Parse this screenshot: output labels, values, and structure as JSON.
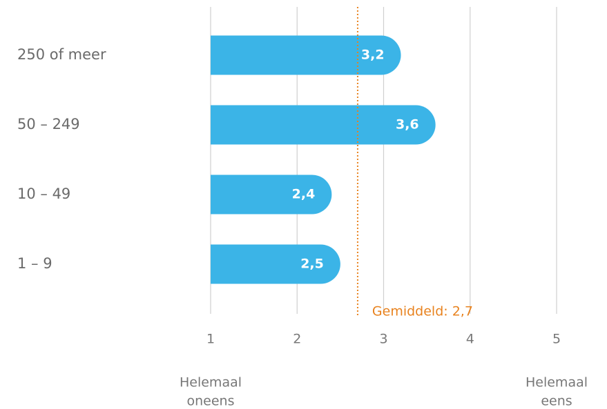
{
  "chart_data": {
    "type": "barh",
    "categories": [
      "250 of meer",
      "50 – 249",
      "10 – 49",
      "1 – 9"
    ],
    "values": [
      3.2,
      3.6,
      2.4,
      2.5
    ],
    "value_labels": [
      "3,2",
      "3,6",
      "2,4",
      "2,5"
    ],
    "color": "#3bb4e7",
    "xlim": [
      1,
      5
    ],
    "xticks": [
      1,
      2,
      3,
      4,
      5
    ],
    "grid": true,
    "average": {
      "value": 2.7,
      "label": "Gemiddeld: 2,7",
      "color": "#e8821e"
    },
    "x_label_left": [
      "Helemaal",
      "oneens"
    ],
    "x_label_right": [
      "Helemaal",
      "eens"
    ]
  }
}
